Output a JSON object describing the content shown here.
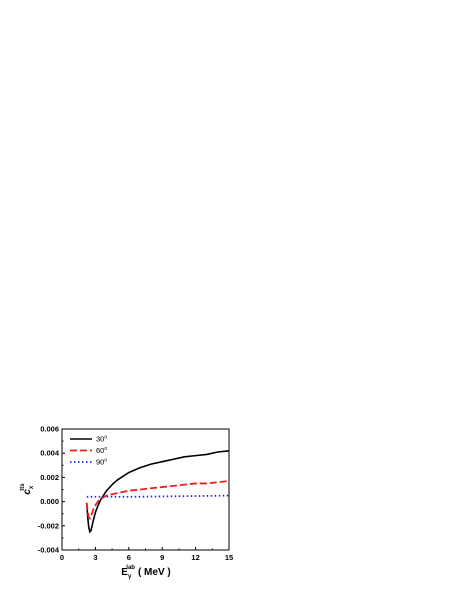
{
  "chart_data": {
    "type": "line",
    "title": "",
    "xlabel": {
      "main": "E",
      "sub": "γ",
      "sup": "lab",
      "unit": "( MeV )"
    },
    "ylabel": {
      "main": "c",
      "sub": "x",
      "sup": "tts"
    },
    "xlim": [
      0,
      15
    ],
    "ylim": [
      -0.004,
      0.006
    ],
    "x_ticks": [
      "0",
      "3",
      "6",
      "9",
      "12",
      "15"
    ],
    "y_ticks": [
      "-0.004",
      "-0.002",
      "0.000",
      "0.002",
      "0.004",
      "0.006"
    ],
    "legend_position": "top-left",
    "grid": false,
    "series": [
      {
        "name": "30°",
        "label_main": "30",
        "label_sup": "o",
        "style": "solid",
        "color": "#000000",
        "x": [
          2.22,
          2.3,
          2.4,
          2.5,
          2.6,
          2.7,
          2.8,
          3.0,
          3.2,
          3.5,
          4.0,
          4.5,
          5.0,
          6.0,
          7.0,
          8.0,
          9.0,
          10.0,
          11.0,
          12.0,
          13.0,
          14.0,
          15.0
        ],
        "y": [
          -0.0001,
          -0.0012,
          -0.0021,
          -0.0025,
          -0.0024,
          -0.002,
          -0.0016,
          -0.0009,
          -0.0004,
          0.0002,
          0.0009,
          0.0014,
          0.0018,
          0.0024,
          0.0028,
          0.0031,
          0.0033,
          0.0035,
          0.0037,
          0.0038,
          0.0039,
          0.0041,
          0.0042
        ]
      },
      {
        "name": "60°",
        "label_main": "60",
        "label_sup": "o",
        "style": "dashed",
        "color": "#e8201f",
        "x": [
          2.22,
          2.3,
          2.4,
          2.5,
          2.6,
          2.8,
          3.0,
          3.3,
          3.6,
          4.0,
          5.0,
          6.0,
          7.0,
          8.0,
          9.0,
          10.0,
          11.0,
          12.0,
          13.0,
          14.0,
          15.0
        ],
        "y": [
          -0.0001,
          -0.0008,
          -0.0013,
          -0.0014,
          -0.0012,
          -0.0007,
          -0.0003,
          0.0001,
          0.0003,
          0.0005,
          0.0007,
          0.0009,
          0.001,
          0.0011,
          0.0012,
          0.0013,
          0.0014,
          0.0015,
          0.0015,
          0.0016,
          0.0017
        ]
      },
      {
        "name": "90°",
        "label_main": "90",
        "label_sup": "o",
        "style": "dotted",
        "color": "#1f2fd6",
        "x": [
          2.22,
          2.5,
          3.0,
          4.0,
          5.0,
          6.0,
          7.0,
          8.0,
          9.0,
          10.0,
          11.0,
          12.0,
          13.0,
          14.0,
          15.0
        ],
        "y": [
          0.0004,
          0.0004,
          0.0004,
          0.0004,
          0.0004,
          0.0004,
          0.0004,
          0.00042,
          0.00043,
          0.00044,
          0.00045,
          0.00046,
          0.00047,
          0.00048,
          0.0005
        ]
      }
    ]
  }
}
